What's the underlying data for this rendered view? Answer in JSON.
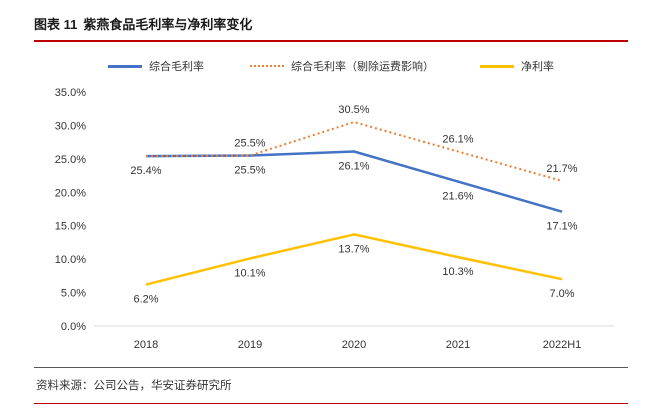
{
  "header": {
    "figure_label": "图表 11",
    "title": "紫燕食品毛利率与净利率变化"
  },
  "footer": {
    "source_label": "资料来源：",
    "source_text": "公司公告，华安证券研究所"
  },
  "colors": {
    "accent_red": "#bf0000",
    "axis_line": "#d9d9d9"
  },
  "chart_data": {
    "type": "line",
    "title": "紫燕食品毛利率与净利率变化",
    "categories": [
      "2018",
      "2019",
      "2020",
      "2021",
      "2022H1"
    ],
    "series": [
      {
        "name": "综合毛利率",
        "color": "#4472c4",
        "dash": "solid",
        "values": [
          25.4,
          25.5,
          26.1,
          21.6,
          17.1
        ],
        "labels": [
          "25.4%",
          "25.5%",
          "26.1%",
          "21.6%",
          "17.1%"
        ],
        "label_pos": "below"
      },
      {
        "name": "综合毛利率（剔除运费影响）",
        "color": "#ed7d31",
        "dash": "dotted",
        "values": [
          25.4,
          25.5,
          30.5,
          26.1,
          21.7
        ],
        "labels": [
          null,
          "25.5%",
          "30.5%",
          "26.1%",
          "21.7%"
        ],
        "label_pos": "above"
      },
      {
        "name": "净利率",
        "color": "#ffc000",
        "dash": "solid",
        "values": [
          6.2,
          10.1,
          13.7,
          10.3,
          7.0
        ],
        "labels": [
          "6.2%",
          "10.1%",
          "13.7%",
          "10.3%",
          "7.0%"
        ],
        "label_pos": "below"
      }
    ],
    "ylim": [
      0,
      35
    ],
    "ytick_step": 5,
    "yticks": [
      "0.0%",
      "5.0%",
      "10.0%",
      "15.0%",
      "20.0%",
      "25.0%",
      "30.0%",
      "35.0%"
    ],
    "grid": "off",
    "legend_position": "top"
  }
}
